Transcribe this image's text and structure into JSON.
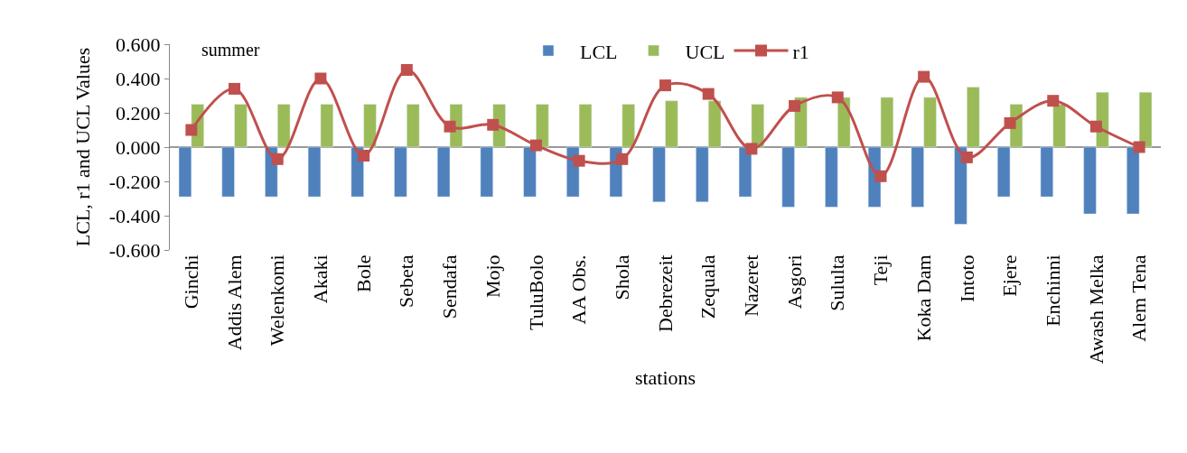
{
  "chart_data": {
    "type": "bar",
    "ylabel": "LCL, r1 and UCL Values",
    "xlabel": "stations",
    "annotations": [
      "summer"
    ],
    "categories": [
      "Ginchi",
      "Addis Alem",
      "Welenkomi",
      "Akaki",
      "Bole",
      "Sebeta",
      "Sendafa",
      "Mojo",
      "TuluBolo",
      "AA Obs.",
      "Shola",
      "Debrezeit",
      "Zequala",
      "Nazeret",
      "Asgori",
      "Sululta",
      "Teji",
      "Koka Dam",
      "Intoto",
      "Ejere",
      "Enchinni",
      "Awash Melka",
      "Alem Tena"
    ],
    "series": [
      {
        "name": "LCL",
        "color": "#4f81bd",
        "values": [
          -0.29,
          -0.29,
          -0.29,
          -0.29,
          -0.29,
          -0.29,
          -0.29,
          -0.29,
          -0.29,
          -0.29,
          -0.29,
          -0.32,
          -0.32,
          -0.29,
          -0.35,
          -0.35,
          -0.35,
          -0.35,
          -0.45,
          -0.29,
          -0.29,
          -0.39,
          -0.39
        ]
      },
      {
        "name": "UCL",
        "color": "#9bbb59",
        "values": [
          0.25,
          0.25,
          0.25,
          0.25,
          0.25,
          0.25,
          0.25,
          0.25,
          0.25,
          0.25,
          0.25,
          0.27,
          0.27,
          0.25,
          0.29,
          0.29,
          0.29,
          0.29,
          0.35,
          0.25,
          0.25,
          0.32,
          0.32
        ]
      },
      {
        "name": "r1",
        "type": "line",
        "color": "#c0504d",
        "marker": "square",
        "line_style": "solid",
        "values": [
          0.1,
          0.34,
          -0.07,
          0.4,
          -0.05,
          0.45,
          0.12,
          0.13,
          0.01,
          -0.08,
          -0.07,
          0.36,
          0.31,
          -0.01,
          0.24,
          0.29,
          -0.17,
          0.41,
          -0.06,
          0.14,
          0.27,
          0.12,
          0.0
        ]
      }
    ],
    "ylim": [
      -0.6,
      0.6
    ],
    "yticks": [
      {
        "value": -0.6,
        "label": "-0.600"
      },
      {
        "value": -0.4,
        "label": "-0.400"
      },
      {
        "value": -0.2,
        "label": "-0.200"
      },
      {
        "value": 0,
        "label": "0.000"
      },
      {
        "value": 0.2,
        "label": "0.200"
      },
      {
        "value": 0.4,
        "label": "0.400"
      },
      {
        "value": 0.6,
        "label": "0.600"
      }
    ],
    "legend": "top"
  }
}
